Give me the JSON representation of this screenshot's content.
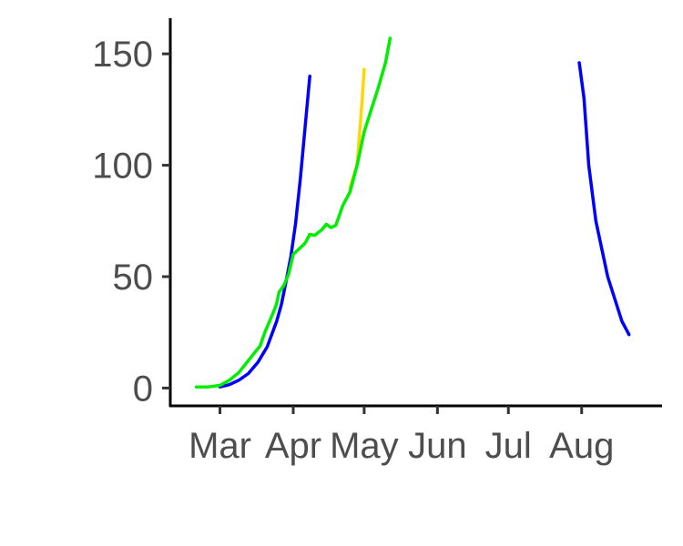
{
  "chart_data": {
    "type": "line",
    "title": "",
    "xlabel": "",
    "ylabel": "",
    "x_axis": {
      "type": "date",
      "ticks": [
        {
          "date": "2020-03-01",
          "label": "Mar"
        },
        {
          "date": "2020-04-01",
          "label": "Apr"
        },
        {
          "date": "2020-05-01",
          "label": "May"
        },
        {
          "date": "2020-06-01",
          "label": "Jun"
        },
        {
          "date": "2020-07-01",
          "label": "Jul"
        },
        {
          "date": "2020-08-01",
          "label": "Aug"
        }
      ],
      "range": [
        "2020-02-09",
        "2020-09-04"
      ]
    },
    "y_axis": {
      "ticks": [
        0,
        50,
        100,
        150
      ],
      "range": [
        -8,
        166
      ]
    },
    "grid": false,
    "legend": "none",
    "series": [
      {
        "color": "#0000ff",
        "points": [
          [
            "2020-03-01",
            0.5
          ],
          [
            "2020-03-05",
            1.5
          ],
          [
            "2020-03-09",
            3.5
          ],
          [
            "2020-03-13",
            6.5
          ],
          [
            "2020-03-17",
            11.5
          ],
          [
            "2020-03-21",
            18.5
          ],
          [
            "2020-03-25",
            30
          ],
          [
            "2020-03-27",
            37.5
          ],
          [
            "2020-03-29",
            48
          ],
          [
            "2020-03-31",
            59
          ],
          [
            "2020-04-02",
            74
          ],
          [
            "2020-04-04",
            94
          ],
          [
            "2020-04-06",
            117
          ],
          [
            "2020-04-08",
            140
          ]
        ]
      },
      {
        "color": "#0000ff",
        "points": [
          [
            "2020-07-31",
            146
          ],
          [
            "2020-08-02",
            130
          ],
          [
            "2020-08-04",
            100
          ],
          [
            "2020-08-07",
            75
          ],
          [
            "2020-08-10",
            60
          ],
          [
            "2020-08-12",
            50
          ],
          [
            "2020-08-15",
            40
          ],
          [
            "2020-08-18",
            30
          ],
          [
            "2020-08-21",
            24
          ]
        ]
      },
      {
        "color": "#ffd700",
        "points": [
          [
            "2020-04-25",
            90
          ],
          [
            "2020-04-28",
            100
          ],
          [
            "2020-04-30",
            127
          ],
          [
            "2020-05-01",
            143
          ]
        ]
      },
      {
        "color": "#00ee00",
        "points": [
          [
            "2020-02-20",
            0.5
          ],
          [
            "2020-02-25",
            0.5
          ],
          [
            "2020-03-01",
            1.2
          ],
          [
            "2020-03-05",
            3.5
          ],
          [
            "2020-03-09",
            7
          ],
          [
            "2020-03-12",
            11
          ],
          [
            "2020-03-15",
            15
          ],
          [
            "2020-03-18",
            19
          ],
          [
            "2020-03-20",
            25
          ],
          [
            "2020-03-22",
            30
          ],
          [
            "2020-03-24",
            35
          ],
          [
            "2020-03-25",
            38
          ],
          [
            "2020-03-26",
            43
          ],
          [
            "2020-03-28",
            46
          ],
          [
            "2020-03-30",
            51
          ],
          [
            "2020-04-01",
            60
          ],
          [
            "2020-04-03",
            62
          ],
          [
            "2020-04-06",
            65
          ],
          [
            "2020-04-08",
            69
          ],
          [
            "2020-04-10",
            68.5
          ],
          [
            "2020-04-13",
            71
          ],
          [
            "2020-04-15",
            73.5
          ],
          [
            "2020-04-17",
            72
          ],
          [
            "2020-04-19",
            73
          ],
          [
            "2020-04-22",
            82
          ],
          [
            "2020-04-25",
            88
          ],
          [
            "2020-04-28",
            100
          ],
          [
            "2020-05-01",
            115
          ],
          [
            "2020-05-04",
            125
          ],
          [
            "2020-05-07",
            135
          ],
          [
            "2020-05-10",
            146
          ],
          [
            "2020-05-12",
            157
          ]
        ]
      }
    ]
  }
}
